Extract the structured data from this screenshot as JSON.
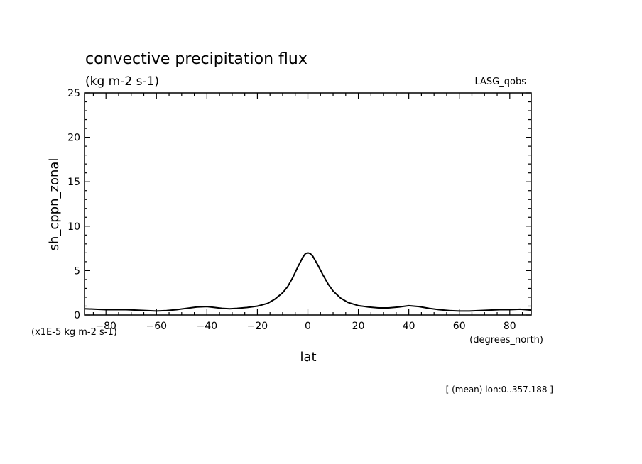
{
  "chart_data": {
    "type": "line",
    "title": "convective precipitation flux",
    "units": "(kg m-2 s-1)",
    "dataset_label": "LASG_qobs",
    "xlabel": "lat",
    "x_units": "(degrees_north)",
    "ylabel": "sh_cppn_zonal",
    "y_scale_label": "(x1E-5 kg m-2 s-1)",
    "footer": "[ (mean) lon:0..357.188 ]",
    "xlim": [
      -88.5,
      88.5
    ],
    "ylim": [
      0,
      25
    ],
    "x_ticks": [
      -80,
      -60,
      -40,
      -20,
      0,
      20,
      40,
      60,
      80
    ],
    "y_ticks": [
      0,
      5,
      10,
      15,
      20,
      25
    ],
    "grid": false,
    "series": [
      {
        "x": [
          -88.5,
          -84,
          -80,
          -76,
          -72,
          -68,
          -64,
          -60,
          -56,
          -52,
          -48,
          -44,
          -40,
          -37,
          -34,
          -31,
          -28,
          -24,
          -20,
          -16,
          -13,
          -10,
          -8,
          -6,
          -4,
          -2,
          -1,
          0,
          1,
          2,
          4,
          6,
          8,
          10,
          13,
          16,
          20,
          24,
          28,
          32,
          36,
          40,
          44,
          48,
          52,
          56,
          60,
          64,
          68,
          72,
          76,
          80,
          84,
          88.5
        ],
        "y": [
          0.7,
          0.65,
          0.6,
          0.6,
          0.6,
          0.55,
          0.5,
          0.45,
          0.5,
          0.6,
          0.75,
          0.9,
          0.95,
          0.85,
          0.75,
          0.7,
          0.75,
          0.85,
          1.0,
          1.3,
          1.8,
          2.5,
          3.2,
          4.2,
          5.4,
          6.5,
          6.9,
          7.0,
          6.9,
          6.6,
          5.6,
          4.5,
          3.5,
          2.7,
          1.9,
          1.4,
          1.05,
          0.9,
          0.8,
          0.8,
          0.9,
          1.05,
          0.95,
          0.75,
          0.6,
          0.5,
          0.45,
          0.45,
          0.5,
          0.55,
          0.6,
          0.6,
          0.65,
          0.55
        ]
      }
    ]
  }
}
